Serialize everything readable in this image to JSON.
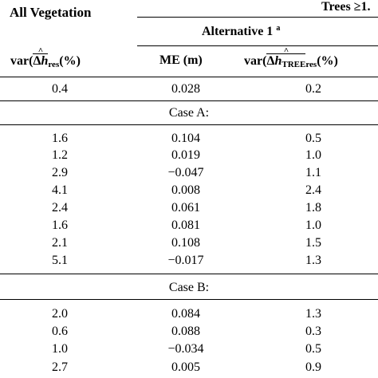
{
  "header": {
    "all_vegetation": "All Vegetation",
    "trees_group": "Trees ≥1.",
    "alternative": "Alternative 1",
    "alternative_note": "a",
    "col1": {
      "pre": "var(",
      "delta": "Δ",
      "h": "h",
      "hat": "^",
      "sub": "res",
      "post": "(%)"
    },
    "col2": "ME (m)",
    "col3": {
      "pre": "var(",
      "delta": "Δ",
      "h": "h",
      "hat": "^",
      "sub": "TREE",
      "sub2": "res",
      "post": "(%)"
    }
  },
  "top_row": [
    "0.4",
    "0.028",
    "0.2"
  ],
  "sections": [
    {
      "title": "Case A:",
      "rows": [
        [
          "1.6",
          "0.104",
          "0.5"
        ],
        [
          "1.2",
          "0.019",
          "1.0"
        ],
        [
          "2.9",
          "−0.047",
          "1.1"
        ],
        [
          "4.1",
          "0.008",
          "2.4"
        ],
        [
          "2.4",
          "0.061",
          "1.8"
        ],
        [
          "1.6",
          "0.081",
          "1.0"
        ],
        [
          "2.1",
          "0.108",
          "1.5"
        ],
        [
          "5.1",
          "−0.017",
          "1.3"
        ]
      ]
    },
    {
      "title": "Case B:",
      "rows": [
        [
          "2.0",
          "0.084",
          "1.3"
        ],
        [
          "0.6",
          "0.088",
          "0.3"
        ],
        [
          "1.0",
          "−0.034",
          "0.5"
        ],
        [
          "2.7",
          "0.005",
          "0.9"
        ]
      ]
    }
  ]
}
